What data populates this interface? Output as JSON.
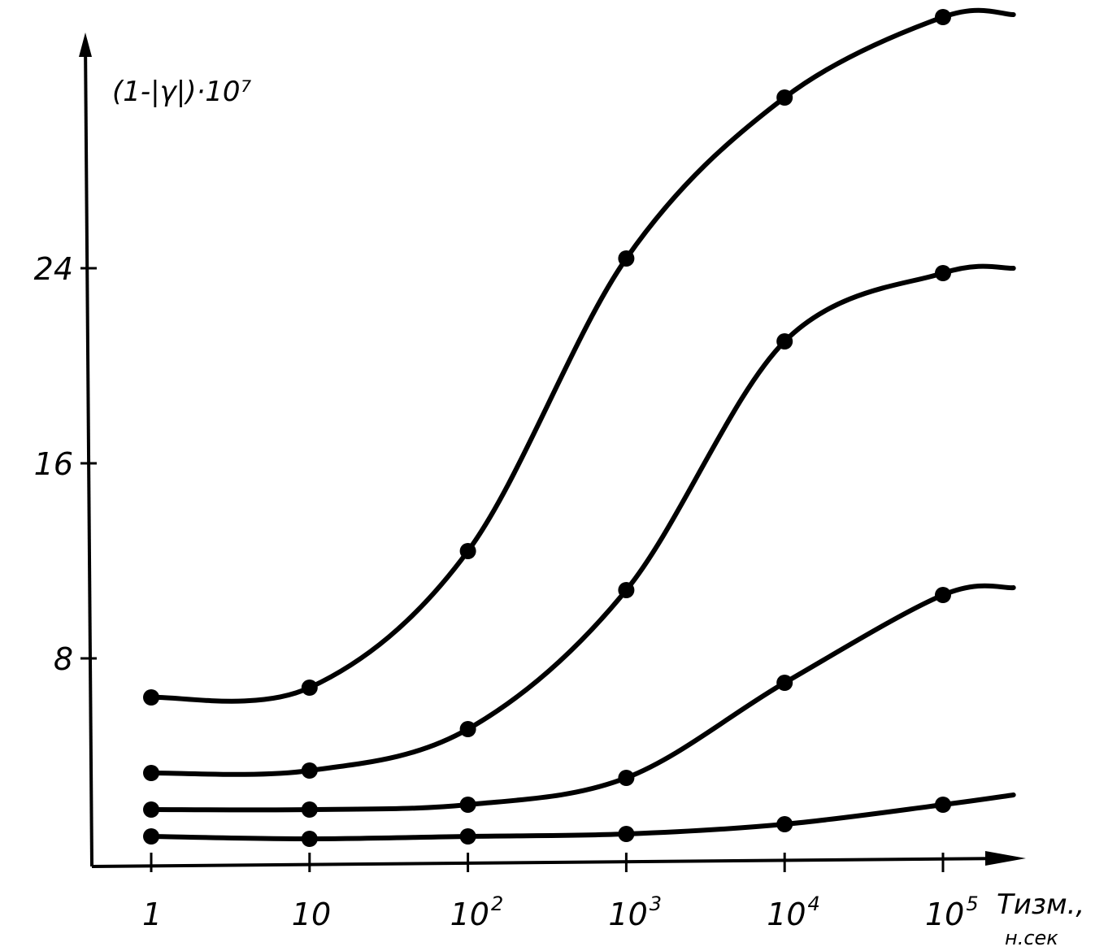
{
  "chart_data": {
    "type": "line",
    "ylabel": "(1-|γ|)·10⁷",
    "xlabel": "Tизм., н.сек",
    "xlabel_line1": "Tизм.,",
    "xlabel_line2": "н.сек",
    "x_scale": "log",
    "x": [
      1,
      10,
      100,
      1000,
      10000,
      100000
    ],
    "x_tick_labels": [
      {
        "base": "1",
        "exp": ""
      },
      {
        "base": "10",
        "exp": ""
      },
      {
        "base": "10",
        "exp": "2"
      },
      {
        "base": "10",
        "exp": "3"
      },
      {
        "base": "10",
        "exp": "4"
      },
      {
        "base": "10",
        "exp": "5"
      }
    ],
    "y_ticks": [
      8,
      16,
      24
    ],
    "y_tick_labels": [
      "8",
      "16",
      "24"
    ],
    "ylim": [
      0,
      33.5
    ],
    "xlim_log": [
      -0.4,
      5.45
    ],
    "grid": false,
    "series": [
      {
        "values": [
          6.4,
          6.8,
          12.4,
          24.4,
          31.0,
          34.3
        ],
        "tail": 34.4
      },
      {
        "values": [
          3.3,
          3.4,
          5.1,
          10.8,
          21.0,
          23.8
        ],
        "tail": 24.0
      },
      {
        "values": [
          1.8,
          1.8,
          2.0,
          3.1,
          7.0,
          10.6
        ],
        "tail": 10.9
      },
      {
        "values": [
          0.7,
          0.6,
          0.7,
          0.8,
          1.2,
          2.0
        ],
        "tail": 2.4
      }
    ]
  }
}
